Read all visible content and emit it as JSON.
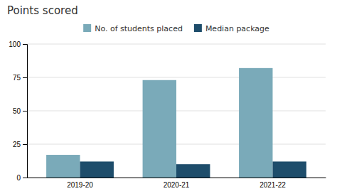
{
  "chart_data": {
    "type": "bar",
    "title": "Points scored",
    "categories": [
      "2019-20",
      "2020-21",
      "2021-22"
    ],
    "series": [
      {
        "name": "No. of students placed",
        "color": "#7aaab9",
        "values": [
          17,
          73,
          82
        ]
      },
      {
        "name": "Median package",
        "color": "#1e4d6b",
        "values": [
          12,
          10,
          12
        ]
      }
    ],
    "ylim": [
      0,
      100
    ],
    "yticks": [
      0,
      25,
      50,
      75,
      100
    ],
    "grid": true,
    "legend": "top"
  }
}
